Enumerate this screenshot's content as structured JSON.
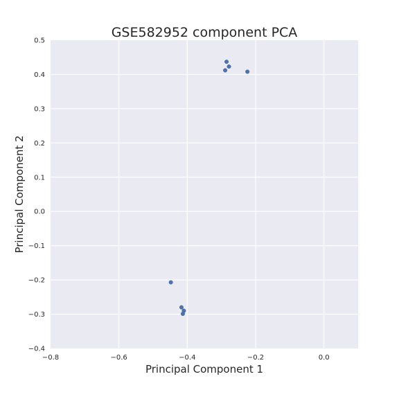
{
  "chart_data": {
    "type": "scatter",
    "title": "GSE582952 component PCA",
    "xlabel": "Principal Component 1",
    "ylabel": "Principal Component 2",
    "xlim": [
      -0.8,
      0.1
    ],
    "ylim": [
      -0.4,
      0.5
    ],
    "xticks": [
      -0.8,
      -0.6,
      -0.4,
      -0.2,
      0.0
    ],
    "yticks": [
      -0.4,
      -0.3,
      -0.2,
      -0.1,
      0.0,
      0.1,
      0.2,
      0.3,
      0.4,
      0.5
    ],
    "x_tick_labels": [
      "−0.8",
      "−0.6",
      "−0.4",
      "−0.2",
      "0.0"
    ],
    "y_tick_labels": [
      "−0.4",
      "−0.3",
      "−0.2",
      "−0.1",
      "0.0",
      "0.1",
      "0.2",
      "0.3",
      "0.4",
      "0.5"
    ],
    "grid": true,
    "colors": {
      "background": "#eaeaf2",
      "grid": "#ffffff",
      "point": "#4c72b0"
    },
    "series": [
      {
        "points": [
          {
            "x": -0.285,
            "y": 0.437
          },
          {
            "x": -0.278,
            "y": 0.423
          },
          {
            "x": -0.289,
            "y": 0.412
          },
          {
            "x": -0.224,
            "y": 0.408
          },
          {
            "x": -0.448,
            "y": -0.207
          },
          {
            "x": -0.417,
            "y": -0.28
          },
          {
            "x": -0.41,
            "y": -0.29
          },
          {
            "x": -0.413,
            "y": -0.299
          }
        ]
      }
    ]
  }
}
